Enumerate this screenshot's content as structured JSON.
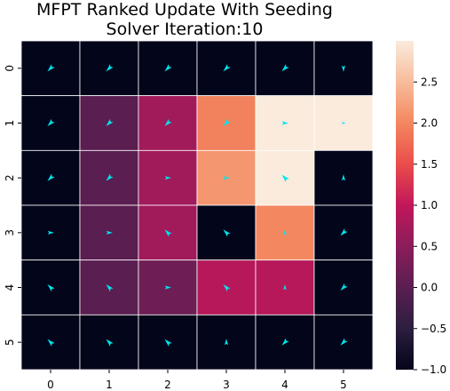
{
  "chart_data": {
    "type": "heatmap",
    "title_lines": [
      "MFPT Ranked Update With Seeding",
      "Solver Iteration:10"
    ],
    "x_ticks": [
      "0",
      "1",
      "2",
      "3",
      "4",
      "5"
    ],
    "y_ticks": [
      "0",
      "1",
      "2",
      "3",
      "4",
      "5"
    ],
    "values": [
      [
        -1.0,
        -1.0,
        -1.0,
        -1.0,
        -1.0,
        -1.0
      ],
      [
        -1.0,
        0.0,
        0.7,
        1.95,
        3.0,
        3.0
      ],
      [
        -1.0,
        0.0,
        0.7,
        2.15,
        3.0,
        -1.0
      ],
      [
        -1.0,
        0.0,
        0.7,
        -1.0,
        2.0,
        -1.0
      ],
      [
        -1.0,
        0.0,
        0.2,
        0.9,
        0.9,
        -1.0
      ],
      [
        -1.0,
        -1.0,
        -1.0,
        -1.0,
        -1.0,
        -1.0
      ]
    ],
    "arrow_angles_deg": [
      [
        135,
        135,
        135,
        135,
        135,
        90
      ],
      [
        135,
        135,
        135,
        135,
        0,
        0
      ],
      [
        135,
        135,
        0,
        0,
        225,
        270
      ],
      [
        0,
        0,
        225,
        225,
        270,
        135
      ],
      [
        225,
        225,
        0,
        225,
        270,
        135
      ],
      [
        225,
        225,
        225,
        270,
        135,
        135
      ]
    ],
    "arrow_sizes": [
      [
        1,
        1,
        1,
        1,
        1,
        0.8
      ],
      [
        1,
        1,
        1,
        1,
        0.8,
        0.5
      ],
      [
        1,
        1,
        0.8,
        0.8,
        1,
        0.8
      ],
      [
        0.8,
        0.8,
        1,
        1,
        0.7,
        1
      ],
      [
        1,
        1,
        0.8,
        1,
        0.7,
        1
      ],
      [
        1,
        1,
        1,
        0.8,
        1,
        1
      ]
    ],
    "vmin": -1.0,
    "vmax": 3.0,
    "colorbar_ticks": [
      2.5,
      2.0,
      1.5,
      1.0,
      0.5,
      0.0,
      -0.5,
      -1.0
    ],
    "colorbar_tick_labels": [
      "2.5",
      "2.0",
      "1.5",
      "1.0",
      "0.5",
      "0.0",
      "−0.5",
      "−1.0"
    ],
    "colormap": [
      "#03051a",
      "#2c1e3f",
      "#5a1e51",
      "#8b1d5b",
      "#c1175a",
      "#ea4d4a",
      "#f3875f",
      "#f7bc9b",
      "#faebdd"
    ],
    "arrow_color": "#00e5ee",
    "grid_line_color": "#ffffff",
    "grid": true
  }
}
